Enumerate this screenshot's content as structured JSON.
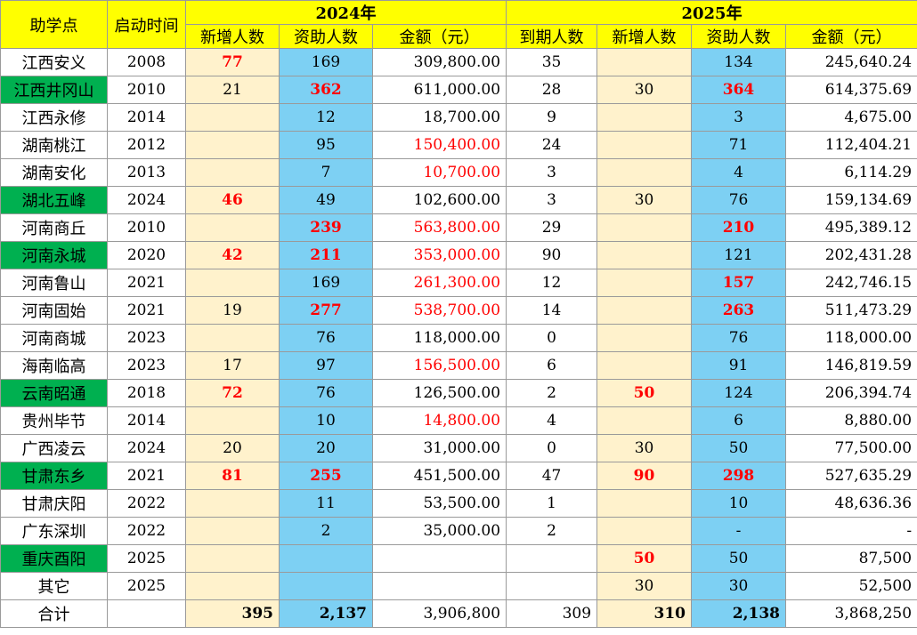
{
  "table": {
    "header": {
      "site": "助学点",
      "start": "启动时间",
      "year1": "2024年",
      "year2": "2025年",
      "sub": [
        "新增人数",
        "资助人数",
        "金额（元）",
        "到期人数",
        "新增人数",
        "资助人数",
        "金额（元）"
      ]
    },
    "rows": [
      [
        "江西安义",
        "2008",
        "77",
        "169",
        "309,800.00",
        "35",
        null,
        "134",
        "245,640.24"
      ],
      [
        "江西井冈山",
        "2010",
        "21",
        "362",
        "611,000.00",
        "28",
        "30",
        "364",
        "614,375.69"
      ],
      [
        "江西永修",
        "2014",
        null,
        "12",
        "18,700.00",
        "9",
        null,
        "3",
        "4,675.00"
      ],
      [
        "湖南桃江",
        "2012",
        null,
        "95",
        "150,400.00",
        "24",
        null,
        "71",
        "112,404.21"
      ],
      [
        "湖南安化",
        "2013",
        null,
        "7",
        "10,700.00",
        "3",
        null,
        "4",
        "6,114.29"
      ],
      [
        "湖北五峰",
        "2024",
        "46",
        "49",
        "102,600.00",
        "3",
        "30",
        "76",
        "159,134.69"
      ],
      [
        "河南商丘",
        "2010",
        null,
        "239",
        "563,800.00",
        "29",
        null,
        "210",
        "495,389.12"
      ],
      [
        "河南永城",
        "2020",
        "42",
        "211",
        "353,000.00",
        "90",
        null,
        "121",
        "202,431.28"
      ],
      [
        "河南鲁山",
        "2021",
        null,
        "169",
        "261,300.00",
        "12",
        null,
        "157",
        "242,746.15"
      ],
      [
        "河南固始",
        "2021",
        "19",
        "277",
        "538,700.00",
        "14",
        null,
        "263",
        "511,473.29"
      ],
      [
        "河南商城",
        "2023",
        null,
        "76",
        "118,000.00",
        "0",
        null,
        "76",
        "118,000.00"
      ],
      [
        "海南临高",
        "2023",
        "17",
        "97",
        "156,500.00",
        "6",
        null,
        "91",
        "146,819.59"
      ],
      [
        "云南昭通",
        "2018",
        "72",
        "76",
        "126,500.00",
        "2",
        "50",
        "124",
        "206,394.74"
      ],
      [
        "贵州毕节",
        "2014",
        null,
        "10",
        "14,800.00",
        "4",
        null,
        "6",
        "8,880.00"
      ],
      [
        "广西凌云",
        "2024",
        "20",
        "20",
        "31,000.00",
        "0",
        "30",
        "50",
        "77,500.00"
      ],
      [
        "甘肃东乡",
        "2021",
        "81",
        "255",
        "451,500.00",
        "47",
        "90",
        "298",
        "527,635.29"
      ],
      [
        "甘肃庆阳",
        "2022",
        null,
        "11",
        "53,500.00",
        "1",
        null,
        "10",
        "48,636.36"
      ],
      [
        "广东深圳",
        "2022",
        null,
        "2",
        "35,000.00",
        "2",
        null,
        "-",
        "-"
      ],
      [
        "重庆酉阳",
        "2025",
        null,
        null,
        null,
        null,
        "50",
        "50",
        "87,500"
      ],
      [
        "其它",
        "2025",
        null,
        null,
        null,
        null,
        "30",
        "30",
        "52,500"
      ],
      [
        "合计",
        null,
        "395",
        "2,137",
        "3,906,800",
        "309",
        "310",
        "2,138",
        "3,868,250"
      ]
    ]
  }
}
